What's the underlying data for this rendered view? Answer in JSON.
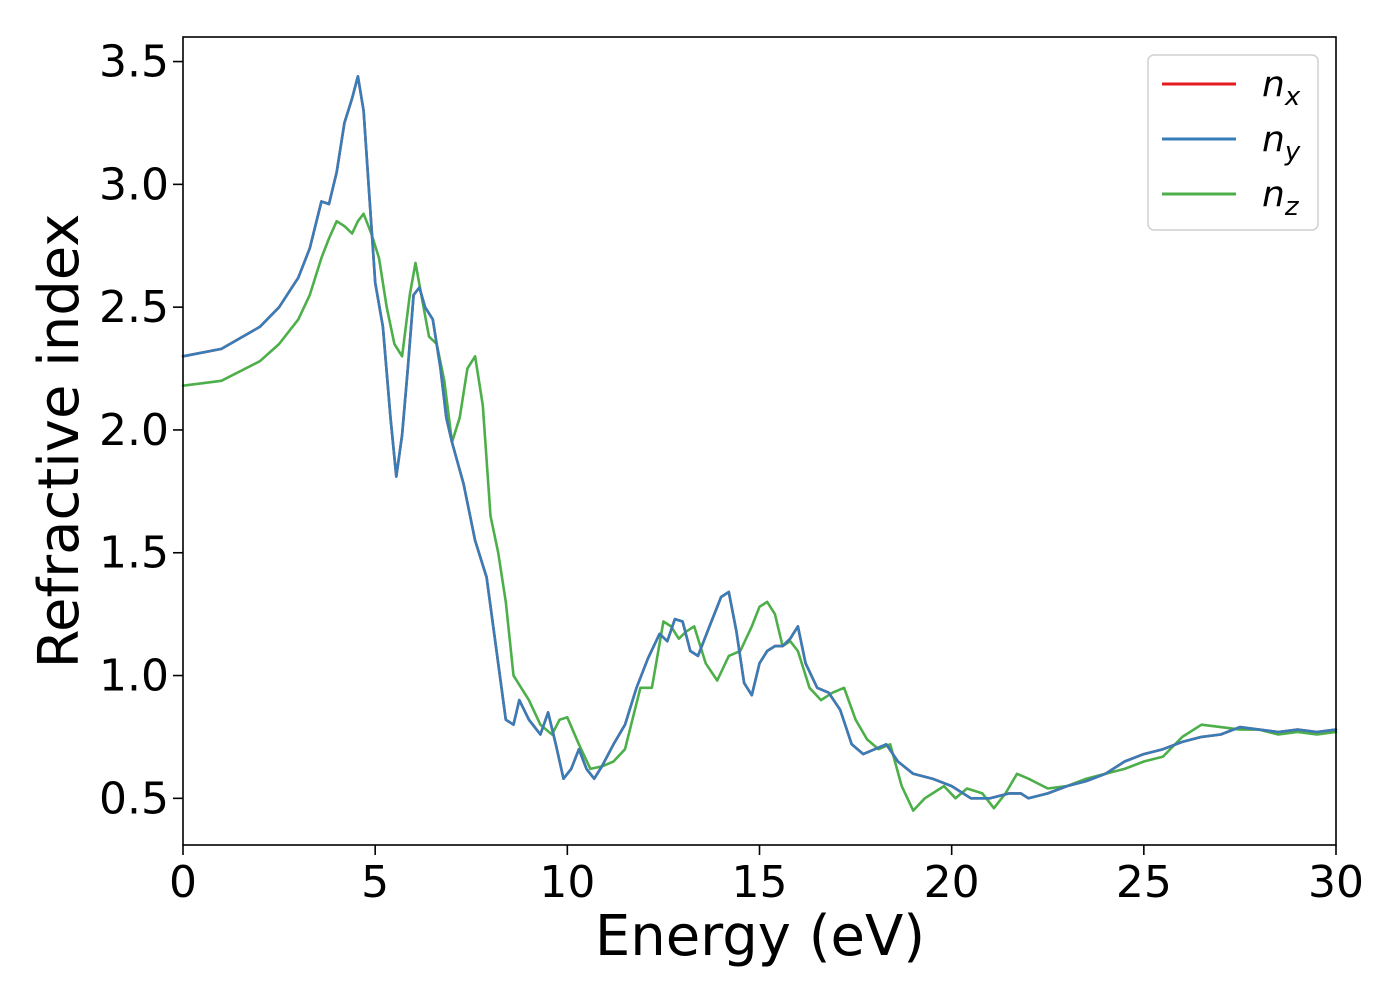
{
  "chart_data": {
    "type": "line",
    "xlabel": "Energy (eV)",
    "ylabel": "Refractive index",
    "xlim": [
      0,
      30
    ],
    "ylim": [
      0.31,
      3.6
    ],
    "xticks": [
      "0",
      "5",
      "10",
      "15",
      "20",
      "25",
      "30"
    ],
    "yticks": [
      "0.5",
      "1.0",
      "1.5",
      "2.0",
      "2.5",
      "3.0",
      "3.5"
    ],
    "grid": false,
    "legend_position": "top-right",
    "series": [
      {
        "name": "n_x",
        "legend_base": "n",
        "legend_sub": "x",
        "color": "#e41a1c",
        "x": [
          0,
          1,
          2,
          2.5,
          3,
          3.3,
          3.6,
          3.8,
          4.0,
          4.2,
          4.4,
          4.55,
          4.7,
          4.85,
          5.0,
          5.2,
          5.4,
          5.55,
          5.7,
          5.85,
          6.0,
          6.15,
          6.3,
          6.5,
          6.7,
          6.85,
          7.0,
          7.3,
          7.6,
          7.9,
          8.2,
          8.4,
          8.6,
          8.75,
          9.0,
          9.3,
          9.5,
          9.7,
          9.9,
          10.1,
          10.3,
          10.5,
          10.7,
          10.9,
          11.2,
          11.5,
          11.8,
          12.1,
          12.4,
          12.6,
          12.8,
          13.0,
          13.2,
          13.4,
          13.7,
          14.0,
          14.2,
          14.4,
          14.6,
          14.8,
          15.0,
          15.2,
          15.4,
          15.6,
          15.8,
          16.0,
          16.2,
          16.5,
          16.8,
          17.1,
          17.4,
          17.7,
          18.0,
          18.3,
          18.6,
          19.0,
          19.5,
          20.0,
          20.5,
          21.0,
          21.5,
          21.8,
          22.0,
          22.5,
          23.0,
          23.5,
          24.0,
          24.5,
          25.0,
          25.5,
          26.0,
          26.5,
          27.0,
          27.5,
          28.0,
          28.5,
          29.0,
          29.5,
          30.0
        ],
        "y": [
          2.3,
          2.33,
          2.42,
          2.5,
          2.62,
          2.74,
          2.93,
          2.92,
          3.05,
          3.25,
          3.35,
          3.44,
          3.3,
          2.95,
          2.6,
          2.42,
          2.05,
          1.81,
          1.98,
          2.25,
          2.55,
          2.58,
          2.5,
          2.45,
          2.25,
          2.05,
          1.95,
          1.78,
          1.55,
          1.4,
          1.05,
          0.82,
          0.8,
          0.9,
          0.82,
          0.76,
          0.85,
          0.72,
          0.58,
          0.62,
          0.7,
          0.62,
          0.58,
          0.63,
          0.72,
          0.8,
          0.95,
          1.07,
          1.17,
          1.14,
          1.23,
          1.22,
          1.1,
          1.08,
          1.2,
          1.32,
          1.34,
          1.18,
          0.97,
          0.92,
          1.05,
          1.1,
          1.12,
          1.12,
          1.15,
          1.2,
          1.05,
          0.95,
          0.93,
          0.86,
          0.72,
          0.68,
          0.7,
          0.72,
          0.65,
          0.6,
          0.58,
          0.55,
          0.5,
          0.5,
          0.52,
          0.52,
          0.5,
          0.52,
          0.55,
          0.57,
          0.6,
          0.65,
          0.68,
          0.7,
          0.73,
          0.75,
          0.76,
          0.79,
          0.78,
          0.77,
          0.78,
          0.77,
          0.78
        ]
      },
      {
        "name": "n_y",
        "legend_base": "n",
        "legend_sub": "y",
        "color": "#377eb8",
        "x": [
          0,
          1,
          2,
          2.5,
          3,
          3.3,
          3.6,
          3.8,
          4.0,
          4.2,
          4.4,
          4.55,
          4.7,
          4.85,
          5.0,
          5.2,
          5.4,
          5.55,
          5.7,
          5.85,
          6.0,
          6.15,
          6.3,
          6.5,
          6.7,
          6.85,
          7.0,
          7.3,
          7.6,
          7.9,
          8.2,
          8.4,
          8.6,
          8.75,
          9.0,
          9.3,
          9.5,
          9.7,
          9.9,
          10.1,
          10.3,
          10.5,
          10.7,
          10.9,
          11.2,
          11.5,
          11.8,
          12.1,
          12.4,
          12.6,
          12.8,
          13.0,
          13.2,
          13.4,
          13.7,
          14.0,
          14.2,
          14.4,
          14.6,
          14.8,
          15.0,
          15.2,
          15.4,
          15.6,
          15.8,
          16.0,
          16.2,
          16.5,
          16.8,
          17.1,
          17.4,
          17.7,
          18.0,
          18.3,
          18.6,
          19.0,
          19.5,
          20.0,
          20.5,
          21.0,
          21.5,
          21.8,
          22.0,
          22.5,
          23.0,
          23.5,
          24.0,
          24.5,
          25.0,
          25.5,
          26.0,
          26.5,
          27.0,
          27.5,
          28.0,
          28.5,
          29.0,
          29.5,
          30.0
        ],
        "y": [
          2.3,
          2.33,
          2.42,
          2.5,
          2.62,
          2.74,
          2.93,
          2.92,
          3.05,
          3.25,
          3.35,
          3.44,
          3.3,
          2.95,
          2.6,
          2.42,
          2.05,
          1.81,
          1.98,
          2.25,
          2.55,
          2.58,
          2.5,
          2.45,
          2.25,
          2.05,
          1.95,
          1.78,
          1.55,
          1.4,
          1.05,
          0.82,
          0.8,
          0.9,
          0.82,
          0.76,
          0.85,
          0.72,
          0.58,
          0.62,
          0.7,
          0.62,
          0.58,
          0.63,
          0.72,
          0.8,
          0.95,
          1.07,
          1.17,
          1.14,
          1.23,
          1.22,
          1.1,
          1.08,
          1.2,
          1.32,
          1.34,
          1.18,
          0.97,
          0.92,
          1.05,
          1.1,
          1.12,
          1.12,
          1.15,
          1.2,
          1.05,
          0.95,
          0.93,
          0.86,
          0.72,
          0.68,
          0.7,
          0.72,
          0.65,
          0.6,
          0.58,
          0.55,
          0.5,
          0.5,
          0.52,
          0.52,
          0.5,
          0.52,
          0.55,
          0.57,
          0.6,
          0.65,
          0.68,
          0.7,
          0.73,
          0.75,
          0.76,
          0.79,
          0.78,
          0.77,
          0.78,
          0.77,
          0.78
        ]
      },
      {
        "name": "n_z",
        "legend_base": "n",
        "legend_sub": "z",
        "color": "#4daf4a",
        "x": [
          0,
          1,
          2,
          2.5,
          3,
          3.3,
          3.6,
          3.8,
          4.0,
          4.2,
          4.4,
          4.55,
          4.7,
          4.9,
          5.1,
          5.3,
          5.5,
          5.7,
          5.9,
          6.05,
          6.2,
          6.4,
          6.6,
          6.8,
          7.0,
          7.2,
          7.4,
          7.6,
          7.8,
          8.0,
          8.2,
          8.4,
          8.6,
          8.8,
          9.0,
          9.3,
          9.6,
          9.8,
          10.0,
          10.3,
          10.6,
          10.9,
          11.2,
          11.5,
          11.9,
          12.2,
          12.5,
          12.7,
          12.9,
          13.1,
          13.3,
          13.6,
          13.9,
          14.2,
          14.5,
          14.8,
          15.0,
          15.2,
          15.4,
          15.6,
          15.8,
          16.0,
          16.3,
          16.6,
          16.9,
          17.2,
          17.5,
          17.8,
          18.1,
          18.4,
          18.7,
          19.0,
          19.3,
          19.6,
          19.8,
          20.1,
          20.4,
          20.8,
          21.1,
          21.4,
          21.7,
          22.0,
          22.5,
          23.0,
          23.5,
          24.0,
          24.5,
          25.0,
          25.5,
          26.0,
          26.5,
          27.0,
          27.5,
          28.0,
          28.5,
          29.0,
          29.5,
          30.0
        ],
        "y": [
          2.18,
          2.2,
          2.28,
          2.35,
          2.45,
          2.55,
          2.7,
          2.78,
          2.85,
          2.83,
          2.8,
          2.85,
          2.88,
          2.8,
          2.7,
          2.5,
          2.35,
          2.3,
          2.55,
          2.68,
          2.55,
          2.38,
          2.35,
          2.2,
          1.95,
          2.05,
          2.25,
          2.3,
          2.1,
          1.65,
          1.5,
          1.3,
          1.0,
          0.95,
          0.9,
          0.8,
          0.76,
          0.82,
          0.83,
          0.72,
          0.62,
          0.63,
          0.65,
          0.7,
          0.95,
          0.95,
          1.22,
          1.2,
          1.15,
          1.18,
          1.2,
          1.05,
          0.98,
          1.08,
          1.1,
          1.2,
          1.28,
          1.3,
          1.25,
          1.12,
          1.14,
          1.1,
          0.95,
          0.9,
          0.93,
          0.95,
          0.82,
          0.74,
          0.7,
          0.72,
          0.55,
          0.45,
          0.5,
          0.53,
          0.55,
          0.5,
          0.54,
          0.52,
          0.46,
          0.52,
          0.6,
          0.58,
          0.54,
          0.55,
          0.58,
          0.6,
          0.62,
          0.65,
          0.67,
          0.75,
          0.8,
          0.79,
          0.78,
          0.78,
          0.76,
          0.77,
          0.76,
          0.77
        ]
      }
    ]
  }
}
